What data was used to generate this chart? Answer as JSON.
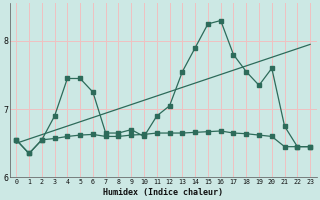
{
  "xlabel": "Humidex (Indice chaleur)",
  "bg_color": "#cce8e4",
  "grid_color": "#f0c0c0",
  "line_color": "#2d6b5a",
  "xlim": [
    -0.5,
    23.5
  ],
  "ylim": [
    6.0,
    8.55
  ],
  "yticks": [
    6,
    7,
    8
  ],
  "xticks": [
    0,
    1,
    2,
    3,
    4,
    5,
    6,
    7,
    8,
    9,
    10,
    11,
    12,
    13,
    14,
    15,
    16,
    17,
    18,
    19,
    20,
    21,
    22,
    23
  ],
  "series1_x": [
    0,
    1,
    2,
    3,
    4,
    5,
    6,
    7,
    8,
    9,
    10,
    11,
    12,
    13,
    14,
    15,
    16,
    17,
    18,
    19,
    20,
    21,
    22,
    23
  ],
  "series1_y": [
    6.55,
    6.35,
    6.55,
    6.9,
    7.45,
    7.45,
    7.25,
    6.65,
    6.65,
    6.7,
    6.6,
    6.9,
    7.05,
    7.55,
    7.9,
    8.25,
    8.3,
    7.8,
    7.55,
    7.35,
    7.6,
    6.75,
    6.45,
    6.45
  ],
  "series2_x": [
    0,
    1,
    2,
    3,
    4,
    5,
    6,
    7,
    8,
    9,
    10,
    11,
    12,
    13,
    14,
    15,
    16,
    17,
    18,
    19,
    20,
    21,
    22,
    23
  ],
  "series2_y": [
    6.55,
    6.35,
    6.55,
    6.57,
    6.6,
    6.62,
    6.63,
    6.6,
    6.6,
    6.62,
    6.63,
    6.65,
    6.65,
    6.65,
    6.66,
    6.67,
    6.68,
    6.65,
    6.64,
    6.62,
    6.6,
    6.45,
    6.45,
    6.45
  ],
  "series3_x": [
    0,
    23
  ],
  "series3_y": [
    6.5,
    7.95
  ]
}
